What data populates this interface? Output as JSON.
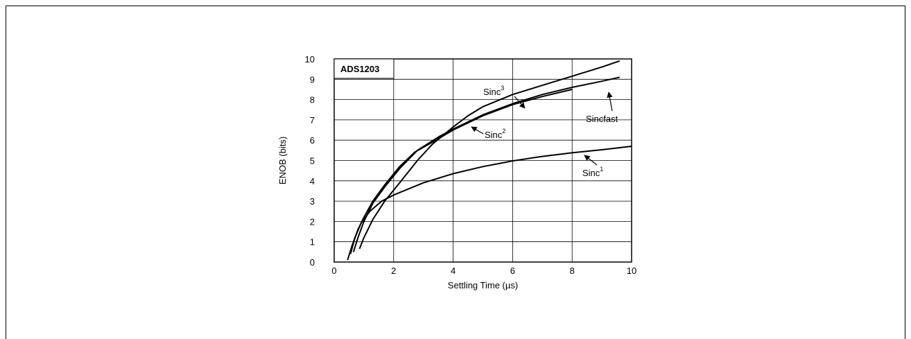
{
  "chart_data": {
    "type": "line",
    "title": "ADS1203",
    "xlabel": "Settling Time (µs)",
    "ylabel": "ENOB (bits)",
    "xlim": [
      0,
      10
    ],
    "ylim": [
      0,
      10
    ],
    "x_ticks": [
      "0",
      "2",
      "4",
      "6",
      "8",
      "10"
    ],
    "y_ticks": [
      "0",
      "1",
      "2",
      "3",
      "4",
      "5",
      "6",
      "7",
      "8",
      "9",
      "10"
    ],
    "grid": true,
    "series": [
      {
        "name": "Sinc1",
        "label_base": "Sinc",
        "label_sup": "1",
        "x": [
          0.55,
          0.7,
          0.9,
          1.2,
          1.6,
          2.0,
          3.0,
          4.0,
          5.0,
          6.0,
          7.0,
          8.0,
          9.0,
          10.0
        ],
        "y": [
          0.4,
          1.2,
          1.9,
          2.5,
          3.0,
          3.3,
          3.9,
          4.35,
          4.7,
          4.98,
          5.2,
          5.38,
          5.53,
          5.7
        ]
      },
      {
        "name": "Sinc2",
        "label_base": "Sinc",
        "label_sup": "2",
        "x": [
          0.45,
          0.6,
          0.8,
          1.0,
          1.3,
          1.7,
          2.2,
          2.7,
          3.3,
          4.0,
          5.0,
          6.0,
          7.0,
          8.0
        ],
        "y": [
          0.1,
          0.8,
          1.6,
          2.2,
          3.0,
          3.8,
          4.7,
          5.4,
          5.9,
          6.5,
          7.2,
          7.75,
          8.15,
          8.5
        ]
      },
      {
        "name": "Sinc3",
        "label_base": "Sinc",
        "label_sup": "3",
        "x": [
          0.85,
          1.0,
          1.3,
          1.7,
          2.2,
          2.8,
          3.3,
          4.0,
          4.5,
          5.0,
          6.0,
          7.0,
          8.0,
          9.0,
          9.6
        ],
        "y": [
          0.65,
          1.2,
          2.1,
          3.0,
          3.9,
          5.0,
          5.8,
          6.65,
          7.2,
          7.65,
          8.25,
          8.7,
          9.15,
          9.6,
          9.9
        ]
      },
      {
        "name": "Sincfast",
        "label_base": "Sincfast",
        "label_sup": "",
        "x": [
          0.65,
          0.8,
          1.0,
          1.3,
          1.7,
          2.2,
          2.8,
          3.5,
          4.0,
          5.0,
          6.0,
          7.0,
          8.0,
          9.0,
          9.6
        ],
        "y": [
          0.5,
          1.2,
          2.0,
          2.9,
          3.7,
          4.6,
          5.5,
          6.15,
          6.55,
          7.25,
          7.8,
          8.25,
          8.6,
          8.9,
          9.1
        ]
      }
    ]
  }
}
